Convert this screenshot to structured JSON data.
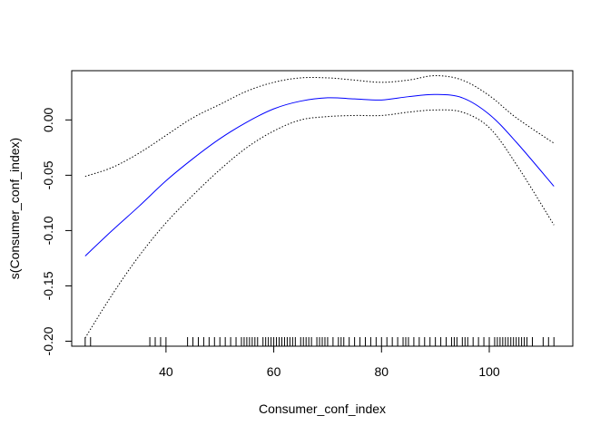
{
  "chart_data": {
    "type": "line",
    "title": "",
    "xlabel": "Consumer_conf_index",
    "ylabel": "s(Consumer_conf_index)",
    "xlim": [
      22.5,
      115.5
    ],
    "ylim": [
      -0.2045,
      0.0445
    ],
    "x_ticks": [
      40,
      60,
      80,
      100
    ],
    "x_tick_labels": [
      "40",
      "60",
      "80",
      "100"
    ],
    "y_ticks": [
      -0.2,
      -0.15,
      -0.1,
      -0.05,
      0.0
    ],
    "y_tick_labels": [
      "-0.20",
      "-0.15",
      "-0.10",
      "-0.05",
      "0.00"
    ],
    "grid": false,
    "series": [
      {
        "name": "fit",
        "color": "#0000ff",
        "style": "solid",
        "x": [
          25,
          30,
          35,
          40,
          45,
          50,
          55,
          60,
          65,
          70,
          75,
          80,
          85,
          90,
          95,
          100,
          105,
          112
        ],
        "y": [
          -0.123,
          -0.1,
          -0.078,
          -0.055,
          -0.035,
          -0.017,
          -0.002,
          0.01,
          0.017,
          0.02,
          0.019,
          0.018,
          0.021,
          0.023,
          0.02,
          0.005,
          -0.02,
          -0.06
        ]
      },
      {
        "name": "upper",
        "color": "#000000",
        "style": "dotted",
        "x": [
          25,
          30,
          35,
          40,
          45,
          50,
          55,
          60,
          65,
          70,
          75,
          80,
          85,
          90,
          95,
          100,
          105,
          112
        ],
        "y": [
          -0.051,
          -0.043,
          -0.03,
          -0.014,
          0.002,
          0.014,
          0.026,
          0.034,
          0.038,
          0.038,
          0.036,
          0.034,
          0.036,
          0.04,
          0.036,
          0.022,
          0.002,
          -0.021
        ]
      },
      {
        "name": "lower",
        "color": "#000000",
        "style": "dotted",
        "x": [
          25,
          30,
          35,
          40,
          45,
          50,
          55,
          60,
          65,
          70,
          75,
          80,
          85,
          90,
          95,
          100,
          105,
          112
        ],
        "y": [
          -0.197,
          -0.158,
          -0.123,
          -0.093,
          -0.068,
          -0.045,
          -0.025,
          -0.01,
          0.0,
          0.003,
          0.004,
          0.004,
          0.007,
          0.009,
          0.007,
          -0.007,
          -0.04,
          -0.095
        ]
      }
    ],
    "rug": [
      25,
      26,
      37,
      38,
      39,
      40,
      44,
      45,
      46,
      47,
      48,
      49,
      50,
      51,
      52,
      53,
      54,
      54.5,
      55,
      55.5,
      56,
      56.5,
      57,
      58,
      58.5,
      59,
      59.5,
      60,
      60.5,
      61,
      61.5,
      62,
      62.5,
      63,
      63.5,
      64,
      65,
      65.5,
      66,
      66.5,
      67,
      68,
      68.5,
      69,
      69.5,
      70,
      71,
      72,
      72.5,
      73,
      74,
      75,
      76,
      77,
      78,
      79,
      80,
      81,
      82,
      83,
      84,
      84.5,
      85,
      86,
      87,
      88,
      89,
      90,
      91,
      92,
      93,
      93.5,
      94,
      95,
      95.5,
      96,
      97,
      98,
      99,
      100,
      101,
      101.5,
      102,
      102.5,
      103,
      103.5,
      104,
      104.5,
      105,
      105.5,
      106,
      106.5,
      107,
      108,
      110,
      111,
      112
    ]
  }
}
